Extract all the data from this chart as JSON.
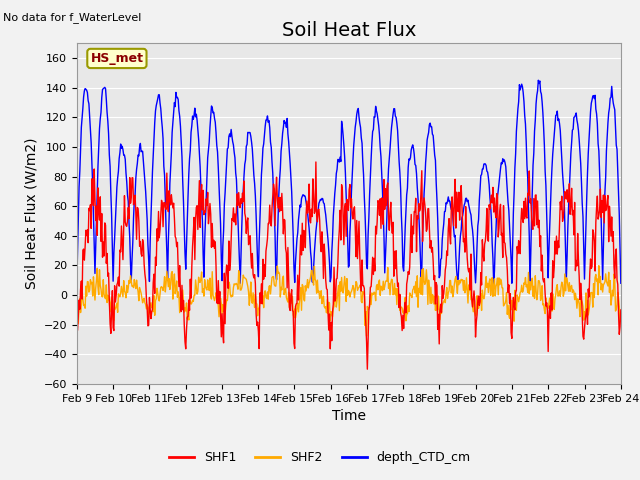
{
  "title": "Soil Heat Flux",
  "top_left_text": "No data for f_WaterLevel",
  "ylabel": "Soil Heat Flux (W/m2)",
  "xlabel": "Time",
  "annotation_box": "HS_met",
  "legend_entries": [
    "SHF1",
    "SHF2",
    "depth_CTD_cm"
  ],
  "legend_colors": [
    "#ff0000",
    "#ffaa00",
    "#0000ff"
  ],
  "ylim": [
    -60,
    170
  ],
  "yticks": [
    -60,
    -40,
    -20,
    0,
    20,
    40,
    60,
    80,
    100,
    120,
    140,
    160
  ],
  "xtick_labels": [
    "Feb 9",
    "Feb 10",
    "Feb 11",
    "Feb 12",
    "Feb 13",
    "Feb 14",
    "Feb 15",
    "Feb 16",
    "Feb 17",
    "Feb 18",
    "Feb 19",
    "Feb 20",
    "Feb 21",
    "Feb 22",
    "Feb 23",
    "Feb 24"
  ],
  "n_days": 15,
  "plot_bg_color": "#e8e8e8",
  "fig_bg_color": "#f2f2f2",
  "grid_color": "#ffffff",
  "title_fontsize": 14,
  "axis_label_fontsize": 10,
  "tick_fontsize": 8
}
